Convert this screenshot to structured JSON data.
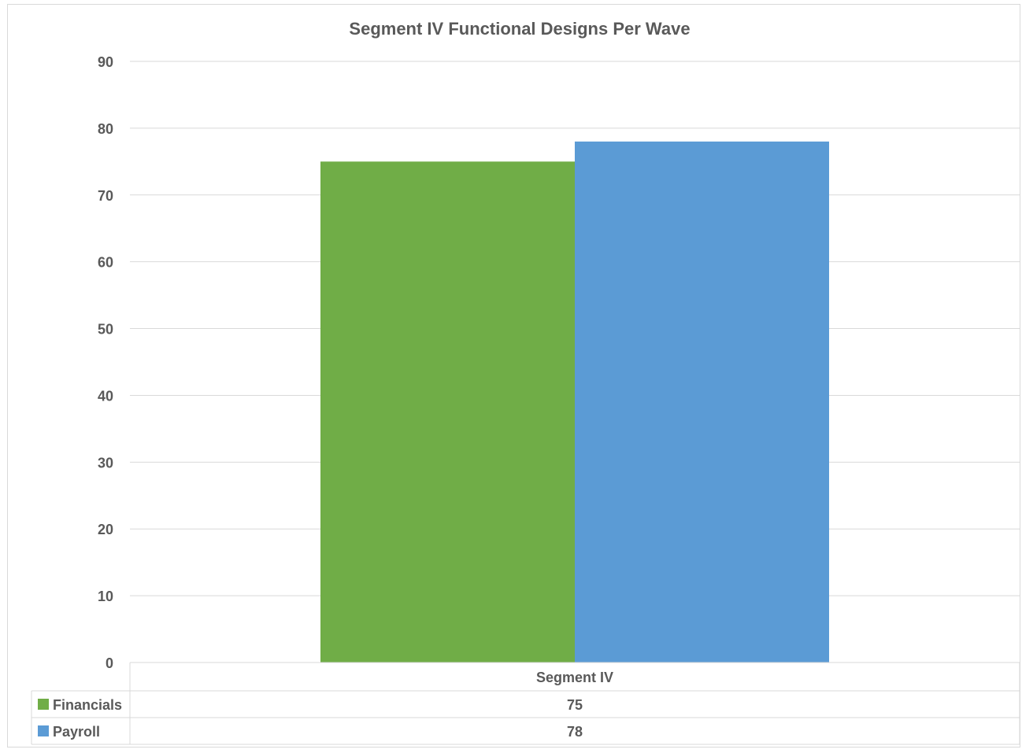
{
  "chart_data": {
    "type": "bar",
    "title": "Segment IV Functional Designs Per Wave",
    "categories": [
      "Segment IV"
    ],
    "series": [
      {
        "name": "Financials",
        "values": [
          75
        ],
        "color": "#70ad47"
      },
      {
        "name": "Payroll",
        "values": [
          78
        ],
        "color": "#5b9bd5"
      }
    ],
    "ylim": [
      0,
      90
    ],
    "yticks": [
      0,
      10,
      20,
      30,
      40,
      50,
      60,
      70,
      80,
      90
    ],
    "grid": true,
    "legend": "data-table-below",
    "data_table": {
      "header": "Segment IV",
      "rows": [
        {
          "label": "Financials",
          "value": "75"
        },
        {
          "label": "Payroll",
          "value": "78"
        }
      ]
    }
  }
}
